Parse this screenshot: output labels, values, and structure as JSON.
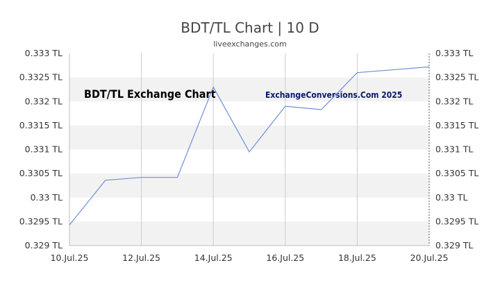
{
  "chart_data": {
    "type": "line",
    "title": "BDT/TL Chart | 10 D",
    "subtitle": "liveexchanges.com",
    "annotations": {
      "left": "BDT/TL Exchange Chart",
      "right": "ExchangeConversions.Com 2025"
    },
    "x": [
      "10.Jul.25",
      "11.Jul.25",
      "12.Jul.25",
      "13.Jul.25",
      "14.Jul.25",
      "15.Jul.25",
      "16.Jul.25",
      "17.Jul.25",
      "18.Jul.25",
      "19.Jul.25",
      "20.Jul.25"
    ],
    "x_tick_labels": [
      "10.Jul.25",
      "12.Jul.25",
      "14.Jul.25",
      "16.Jul.25",
      "18.Jul.25",
      "20.Jul.25"
    ],
    "series": [
      {
        "values": [
          0.32943,
          0.33036,
          0.33042,
          0.33042,
          0.3323,
          0.33095,
          0.3319,
          0.33183,
          0.3326,
          0.33266,
          0.33272
        ]
      }
    ],
    "ylim": [
      0.329,
      0.333
    ],
    "y_tick_labels": [
      "0.333 TL",
      "0.3325 TL",
      "0.332 TL",
      "0.3315 TL",
      "0.331 TL",
      "0.3305 TL",
      "0.33 TL",
      "0.3295 TL",
      "0.329 TL"
    ],
    "colors": {
      "line": "#6f8fd6",
      "band": "#f2f2f2",
      "grid": "#cccccc"
    },
    "grid": true,
    "legend": "none"
  }
}
